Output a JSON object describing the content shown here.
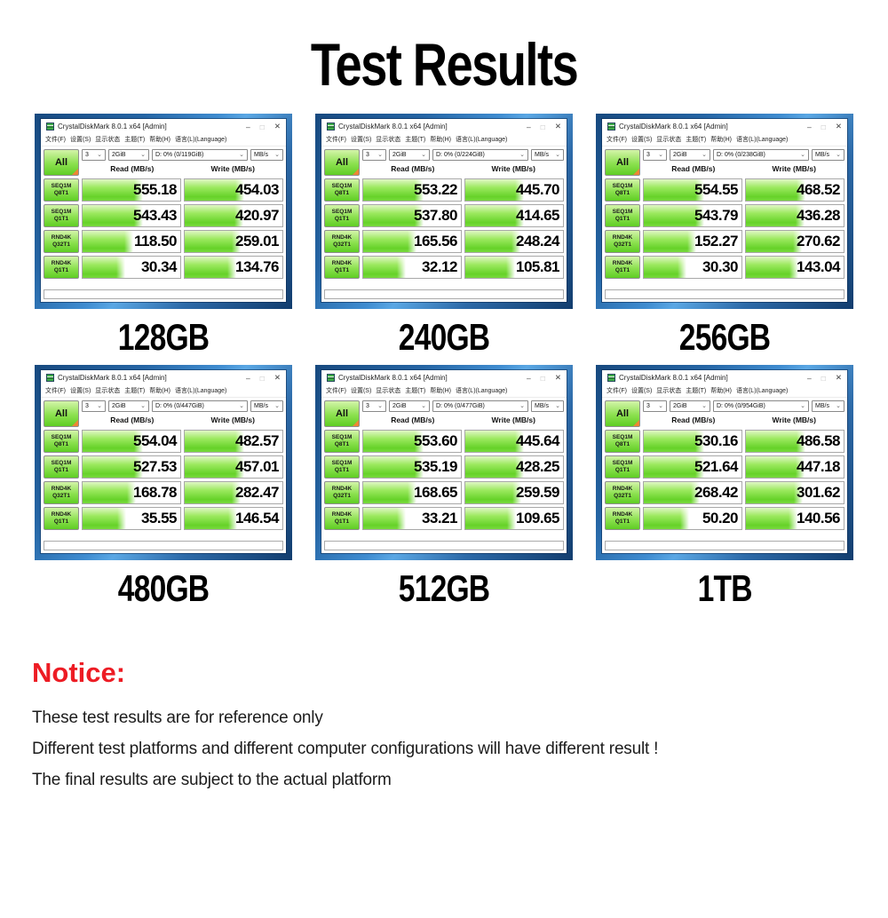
{
  "page": {
    "title": "Test Results"
  },
  "colors": {
    "notice_red": "#ed1c24",
    "bar_green": "#79da3e",
    "desktop_blue": "#2e6fae"
  },
  "app": {
    "title": "CrystalDiskMark 8.0.1 x64 [Admin]",
    "window_controls": {
      "minimize": "–",
      "maximize": "□",
      "close": "✕"
    },
    "menu": [
      "文件(F)",
      "设置(S)",
      "显示状态",
      "主题(T)",
      "帮助(H)",
      "语言(L)(Language)"
    ],
    "combo_count": "3",
    "combo_size": "2GiB",
    "combo_unit": "MB/s",
    "chevron": "⌄",
    "all_label": "All",
    "read_header": "Read (MB/s)",
    "write_header": "Write (MB/s)",
    "row_labels": [
      {
        "top": "SEQ1M",
        "bottom": "Q8T1"
      },
      {
        "top": "SEQ1M",
        "bottom": "Q1T1"
      },
      {
        "top": "RND4K",
        "bottom": "Q32T1"
      },
      {
        "top": "RND4K",
        "bottom": "Q1T1"
      }
    ]
  },
  "windows": [
    {
      "capacity": "128GB",
      "drive": "D: 0% (0/119GiB)",
      "rows": [
        {
          "read": "555.18",
          "write": "454.03"
        },
        {
          "read": "543.43",
          "write": "420.97"
        },
        {
          "read": "118.50",
          "write": "259.01"
        },
        {
          "read": "30.34",
          "write": "134.76"
        }
      ]
    },
    {
      "capacity": "240GB",
      "drive": "D: 0% (0/224GiB)",
      "rows": [
        {
          "read": "553.22",
          "write": "445.70"
        },
        {
          "read": "537.80",
          "write": "414.65"
        },
        {
          "read": "165.56",
          "write": "248.24"
        },
        {
          "read": "32.12",
          "write": "105.81"
        }
      ]
    },
    {
      "capacity": "256GB",
      "drive": "D: 0% (0/238GiB)",
      "rows": [
        {
          "read": "554.55",
          "write": "468.52"
        },
        {
          "read": "543.79",
          "write": "436.28"
        },
        {
          "read": "152.27",
          "write": "270.62"
        },
        {
          "read": "30.30",
          "write": "143.04"
        }
      ]
    },
    {
      "capacity": "480GB",
      "drive": "D: 0% (0/447GiB)",
      "rows": [
        {
          "read": "554.04",
          "write": "482.57"
        },
        {
          "read": "527.53",
          "write": "457.01"
        },
        {
          "read": "168.78",
          "write": "282.47"
        },
        {
          "read": "35.55",
          "write": "146.54"
        }
      ]
    },
    {
      "capacity": "512GB",
      "drive": "D: 0% (0/477GiB)",
      "rows": [
        {
          "read": "553.60",
          "write": "445.64"
        },
        {
          "read": "535.19",
          "write": "428.25"
        },
        {
          "read": "168.65",
          "write": "259.59"
        },
        {
          "read": "33.21",
          "write": "109.65"
        }
      ]
    },
    {
      "capacity": "1TB",
      "drive": "D: 0% (0/954GiB)",
      "rows": [
        {
          "read": "530.16",
          "write": "486.58"
        },
        {
          "read": "521.64",
          "write": "447.18"
        },
        {
          "read": "268.42",
          "write": "301.62"
        },
        {
          "read": "50.20",
          "write": "140.56"
        }
      ]
    }
  ],
  "notice": {
    "heading": "Notice:",
    "lines": [
      "These test results are for reference only",
      "Different test platforms and different computer configurations will have different result !",
      "The final results are subject to the actual platform"
    ]
  }
}
